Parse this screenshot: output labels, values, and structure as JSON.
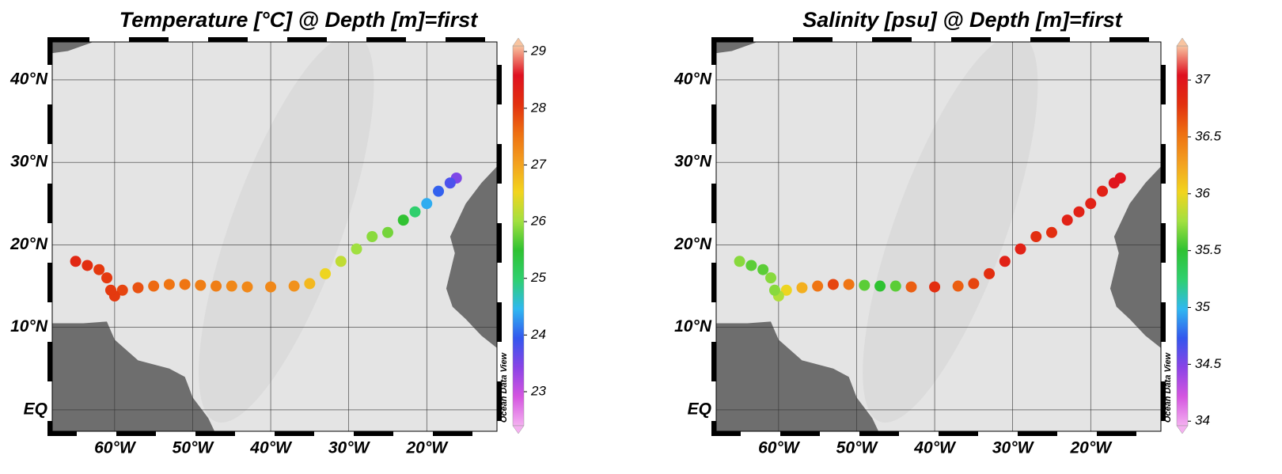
{
  "track": {
    "lon": [
      -16.2,
      -17,
      -18.5,
      -20,
      -21.5,
      -23,
      -25,
      -27,
      -29,
      -31,
      -33,
      -35,
      -37,
      -40,
      -43,
      -45,
      -47,
      -49,
      -51,
      -53,
      -55,
      -57,
      -59,
      -60,
      -60.5,
      -61,
      -62,
      -63.5,
      -65
    ],
    "lat": [
      28.1,
      27.5,
      26.5,
      25,
      24,
      23,
      21.5,
      21,
      19.5,
      18,
      16.5,
      15.3,
      15,
      14.9,
      14.9,
      15,
      15,
      15.1,
      15.2,
      15.2,
      15,
      14.8,
      14.5,
      13.8,
      14.5,
      16,
      17,
      17.5,
      18
    ]
  },
  "colormap": [
    "#f4b0f0",
    "#d455e0",
    "#8a44e6",
    "#3357ee",
    "#2fb8f0",
    "#2fd070",
    "#2fc232",
    "#a2e040",
    "#f2d41e",
    "#f3a020",
    "#ee7012",
    "#e2300f",
    "#df1020",
    "#f8c4a0"
  ],
  "maps": [
    {
      "title": "Temperature [°C] @ Depth [m]=first",
      "credit": "Ocean Data View",
      "xlim": [
        -68,
        -11
      ],
      "ylim": [
        -2.6,
        44.6
      ],
      "xticks": [
        {
          "value": -60,
          "label": "60°W"
        },
        {
          "value": -50,
          "label": "50°W"
        },
        {
          "value": -40,
          "label": "40°W"
        },
        {
          "value": -30,
          "label": "30°W"
        },
        {
          "value": -20,
          "label": "20°W"
        }
      ],
      "yticks": [
        {
          "value": 0,
          "label": "EQ"
        },
        {
          "value": 10,
          "label": "10°N"
        },
        {
          "value": 20,
          "label": "20°N"
        },
        {
          "value": 30,
          "label": "30°N"
        },
        {
          "value": 40,
          "label": "40°N"
        }
      ],
      "clim": [
        22.4,
        29.1
      ],
      "cticks": [
        23,
        24,
        25,
        26,
        27,
        28,
        29
      ],
      "values": [
        23.5,
        23.8,
        24.0,
        24.4,
        25.0,
        25.5,
        25.8,
        25.9,
        26.0,
        26.2,
        26.5,
        26.8,
        27.2,
        27.3,
        27.3,
        27.3,
        27.4,
        27.4,
        27.5,
        27.5,
        27.6,
        27.8,
        27.9,
        28.0,
        28.0,
        28.0,
        28.0,
        28.1,
        28.2
      ]
    },
    {
      "title": "Salinity [psu] @ Depth [m]=first",
      "credit": "Ocean Data View",
      "xlim": [
        -68,
        -11
      ],
      "ylim": [
        -2.6,
        44.6
      ],
      "xticks": [
        {
          "value": -60,
          "label": "60°W"
        },
        {
          "value": -50,
          "label": "50°W"
        },
        {
          "value": -40,
          "label": "40°W"
        },
        {
          "value": -30,
          "label": "30°W"
        },
        {
          "value": -20,
          "label": "20°W"
        }
      ],
      "yticks": [
        {
          "value": 0,
          "label": "EQ"
        },
        {
          "value": 10,
          "label": "10°N"
        },
        {
          "value": 20,
          "label": "20°N"
        },
        {
          "value": 30,
          "label": "30°N"
        },
        {
          "value": 40,
          "label": "40°N"
        }
      ],
      "clim": [
        33.96,
        37.3
      ],
      "cticks": [
        34,
        34.5,
        35,
        35.5,
        36,
        36.5,
        37
      ],
      "values": [
        37.0,
        37.0,
        36.9,
        36.9,
        36.9,
        36.9,
        36.8,
        36.8,
        36.9,
        36.9,
        36.8,
        36.7,
        36.6,
        36.8,
        36.6,
        35.6,
        35.5,
        35.6,
        36.5,
        36.7,
        36.5,
        36.2,
        36.0,
        35.8,
        35.7,
        35.7,
        35.6,
        35.6,
        35.7
      ]
    }
  ]
}
